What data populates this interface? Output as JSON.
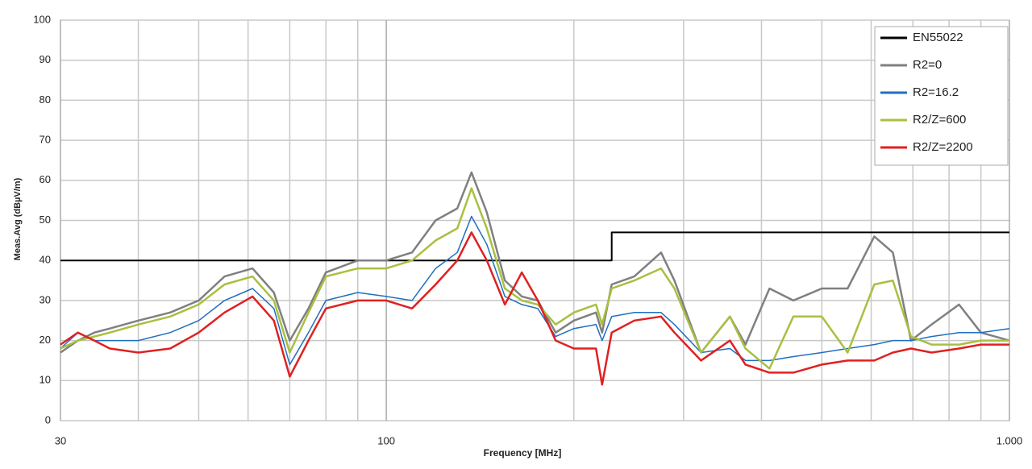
{
  "chart_data": {
    "type": "line",
    "xlabel": "Frequency [MHz]",
    "ylabel": "Meas.Avg (dBµV/m)",
    "xscale": "log",
    "grid": true,
    "legend": "upper right",
    "xlim": [
      30,
      1000
    ],
    "ylim": [
      0,
      100
    ],
    "xticks": [
      30,
      100,
      {
        "value": 1000,
        "label": "1.000"
      }
    ],
    "xminor": [
      40,
      50,
      60,
      70,
      80,
      90,
      200,
      300,
      400,
      500,
      600,
      700,
      800,
      900
    ],
    "yticks": [
      0,
      10,
      20,
      30,
      40,
      50,
      60,
      70,
      80,
      90,
      100
    ],
    "x": [
      30,
      32,
      34,
      36,
      40,
      45,
      50,
      55,
      61,
      66,
      70,
      75,
      80,
      90,
      100,
      110,
      120,
      130,
      137,
      145,
      155,
      165,
      175,
      187,
      200,
      217,
      222,
      230,
      250,
      276,
      290,
      320,
      356,
      377,
      412,
      450,
      500,
      550,
      607,
      650,
      695,
      750,
      830,
      900,
      1000
    ],
    "series": [
      {
        "name": "EN55022",
        "color": "#000000",
        "x": [
          30,
          230,
          230,
          1000
        ],
        "values": [
          40,
          40,
          47,
          47
        ]
      },
      {
        "name": "R2=0",
        "color": "#808080",
        "values": [
          17,
          20,
          22,
          23,
          25,
          27,
          30,
          36,
          38,
          32,
          20,
          28,
          37,
          40,
          40,
          42,
          50,
          53,
          62,
          52,
          35,
          31,
          30,
          22,
          25,
          27,
          22,
          34,
          36,
          42,
          35,
          17,
          26,
          19,
          33,
          30,
          33,
          33,
          46,
          42,
          20,
          24,
          29,
          22,
          20
        ]
      },
      {
        "name": "R2=16.2",
        "color": "#1f6fc0",
        "values": [
          18,
          22,
          20,
          20,
          20,
          22,
          25,
          30,
          33,
          28,
          14,
          22,
          30,
          32,
          31,
          30,
          38,
          42,
          51,
          44,
          31,
          29,
          28,
          21,
          23,
          24,
          20,
          26,
          27,
          27,
          24,
          17,
          18,
          15,
          15,
          16,
          17,
          18,
          19,
          20,
          20,
          21,
          22,
          22,
          23
        ]
      },
      {
        "name": "R2/Z=600",
        "color": "#a8c040",
        "values": [
          18,
          20,
          21,
          22,
          24,
          26,
          29,
          34,
          36,
          30,
          17,
          27,
          36,
          38,
          38,
          40,
          45,
          48,
          58,
          48,
          33,
          30,
          29,
          24,
          27,
          29,
          24,
          33,
          35,
          38,
          33,
          17,
          26,
          18,
          13,
          26,
          26,
          17,
          34,
          35,
          21,
          19,
          19,
          20,
          20
        ]
      },
      {
        "name": "R2/Z=2200",
        "color": "#e02020",
        "values": [
          19,
          22,
          20,
          18,
          17,
          18,
          22,
          27,
          31,
          25,
          11,
          20,
          28,
          30,
          30,
          28,
          34,
          40,
          47,
          40,
          29,
          37,
          30,
          20,
          18,
          18,
          9,
          22,
          25,
          26,
          22,
          15,
          20,
          14,
          12,
          12,
          14,
          15,
          15,
          17,
          18,
          17,
          18,
          19,
          19
        ]
      }
    ]
  }
}
